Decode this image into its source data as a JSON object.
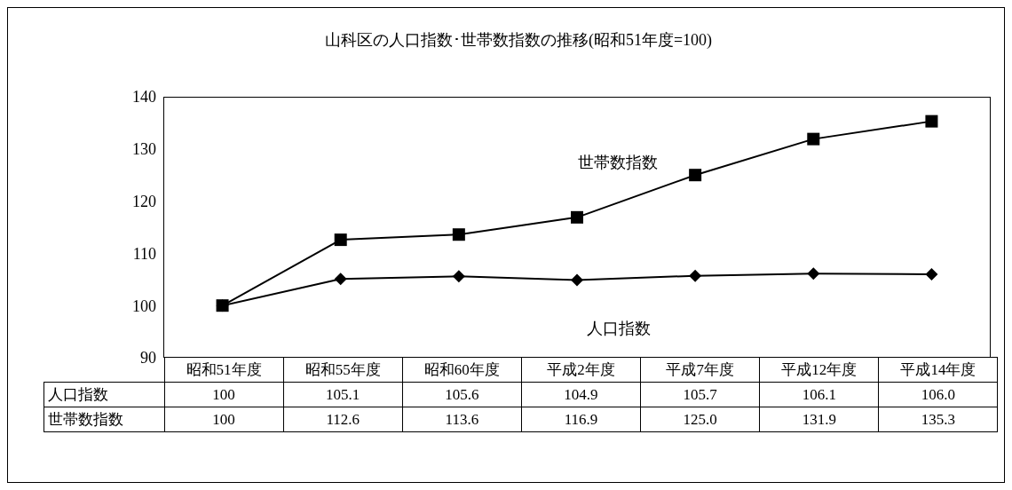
{
  "chart_data": {
    "type": "line",
    "title": "山科区の人口指数･世帯数指数の推移(昭和51年度=100)",
    "categories": [
      "昭和51年度",
      "昭和55年度",
      "昭和60年度",
      "平成2年度",
      "平成7年度",
      "平成12年度",
      "平成14年度"
    ],
    "series": [
      {
        "name": "人口指数",
        "color": "#000000",
        "marker": "diamond",
        "values": [
          100,
          105.1,
          105.6,
          104.9,
          105.7,
          106.1,
          106.0
        ],
        "value_labels": [
          "100",
          "105.1",
          "105.6",
          "104.9",
          "105.7",
          "106.1",
          "106.0"
        ]
      },
      {
        "name": "世帯数指数",
        "color": "#000000",
        "marker": "square",
        "values": [
          100,
          112.6,
          113.6,
          116.9,
          125.0,
          131.9,
          135.3
        ],
        "value_labels": [
          "100",
          "112.6",
          "113.6",
          "116.9",
          "125.0",
          "131.9",
          "135.3"
        ]
      }
    ],
    "ylim": [
      90,
      140
    ],
    "yticks": [
      90,
      100,
      110,
      120,
      130,
      140
    ],
    "data_labels": true,
    "line_style": "solid"
  }
}
